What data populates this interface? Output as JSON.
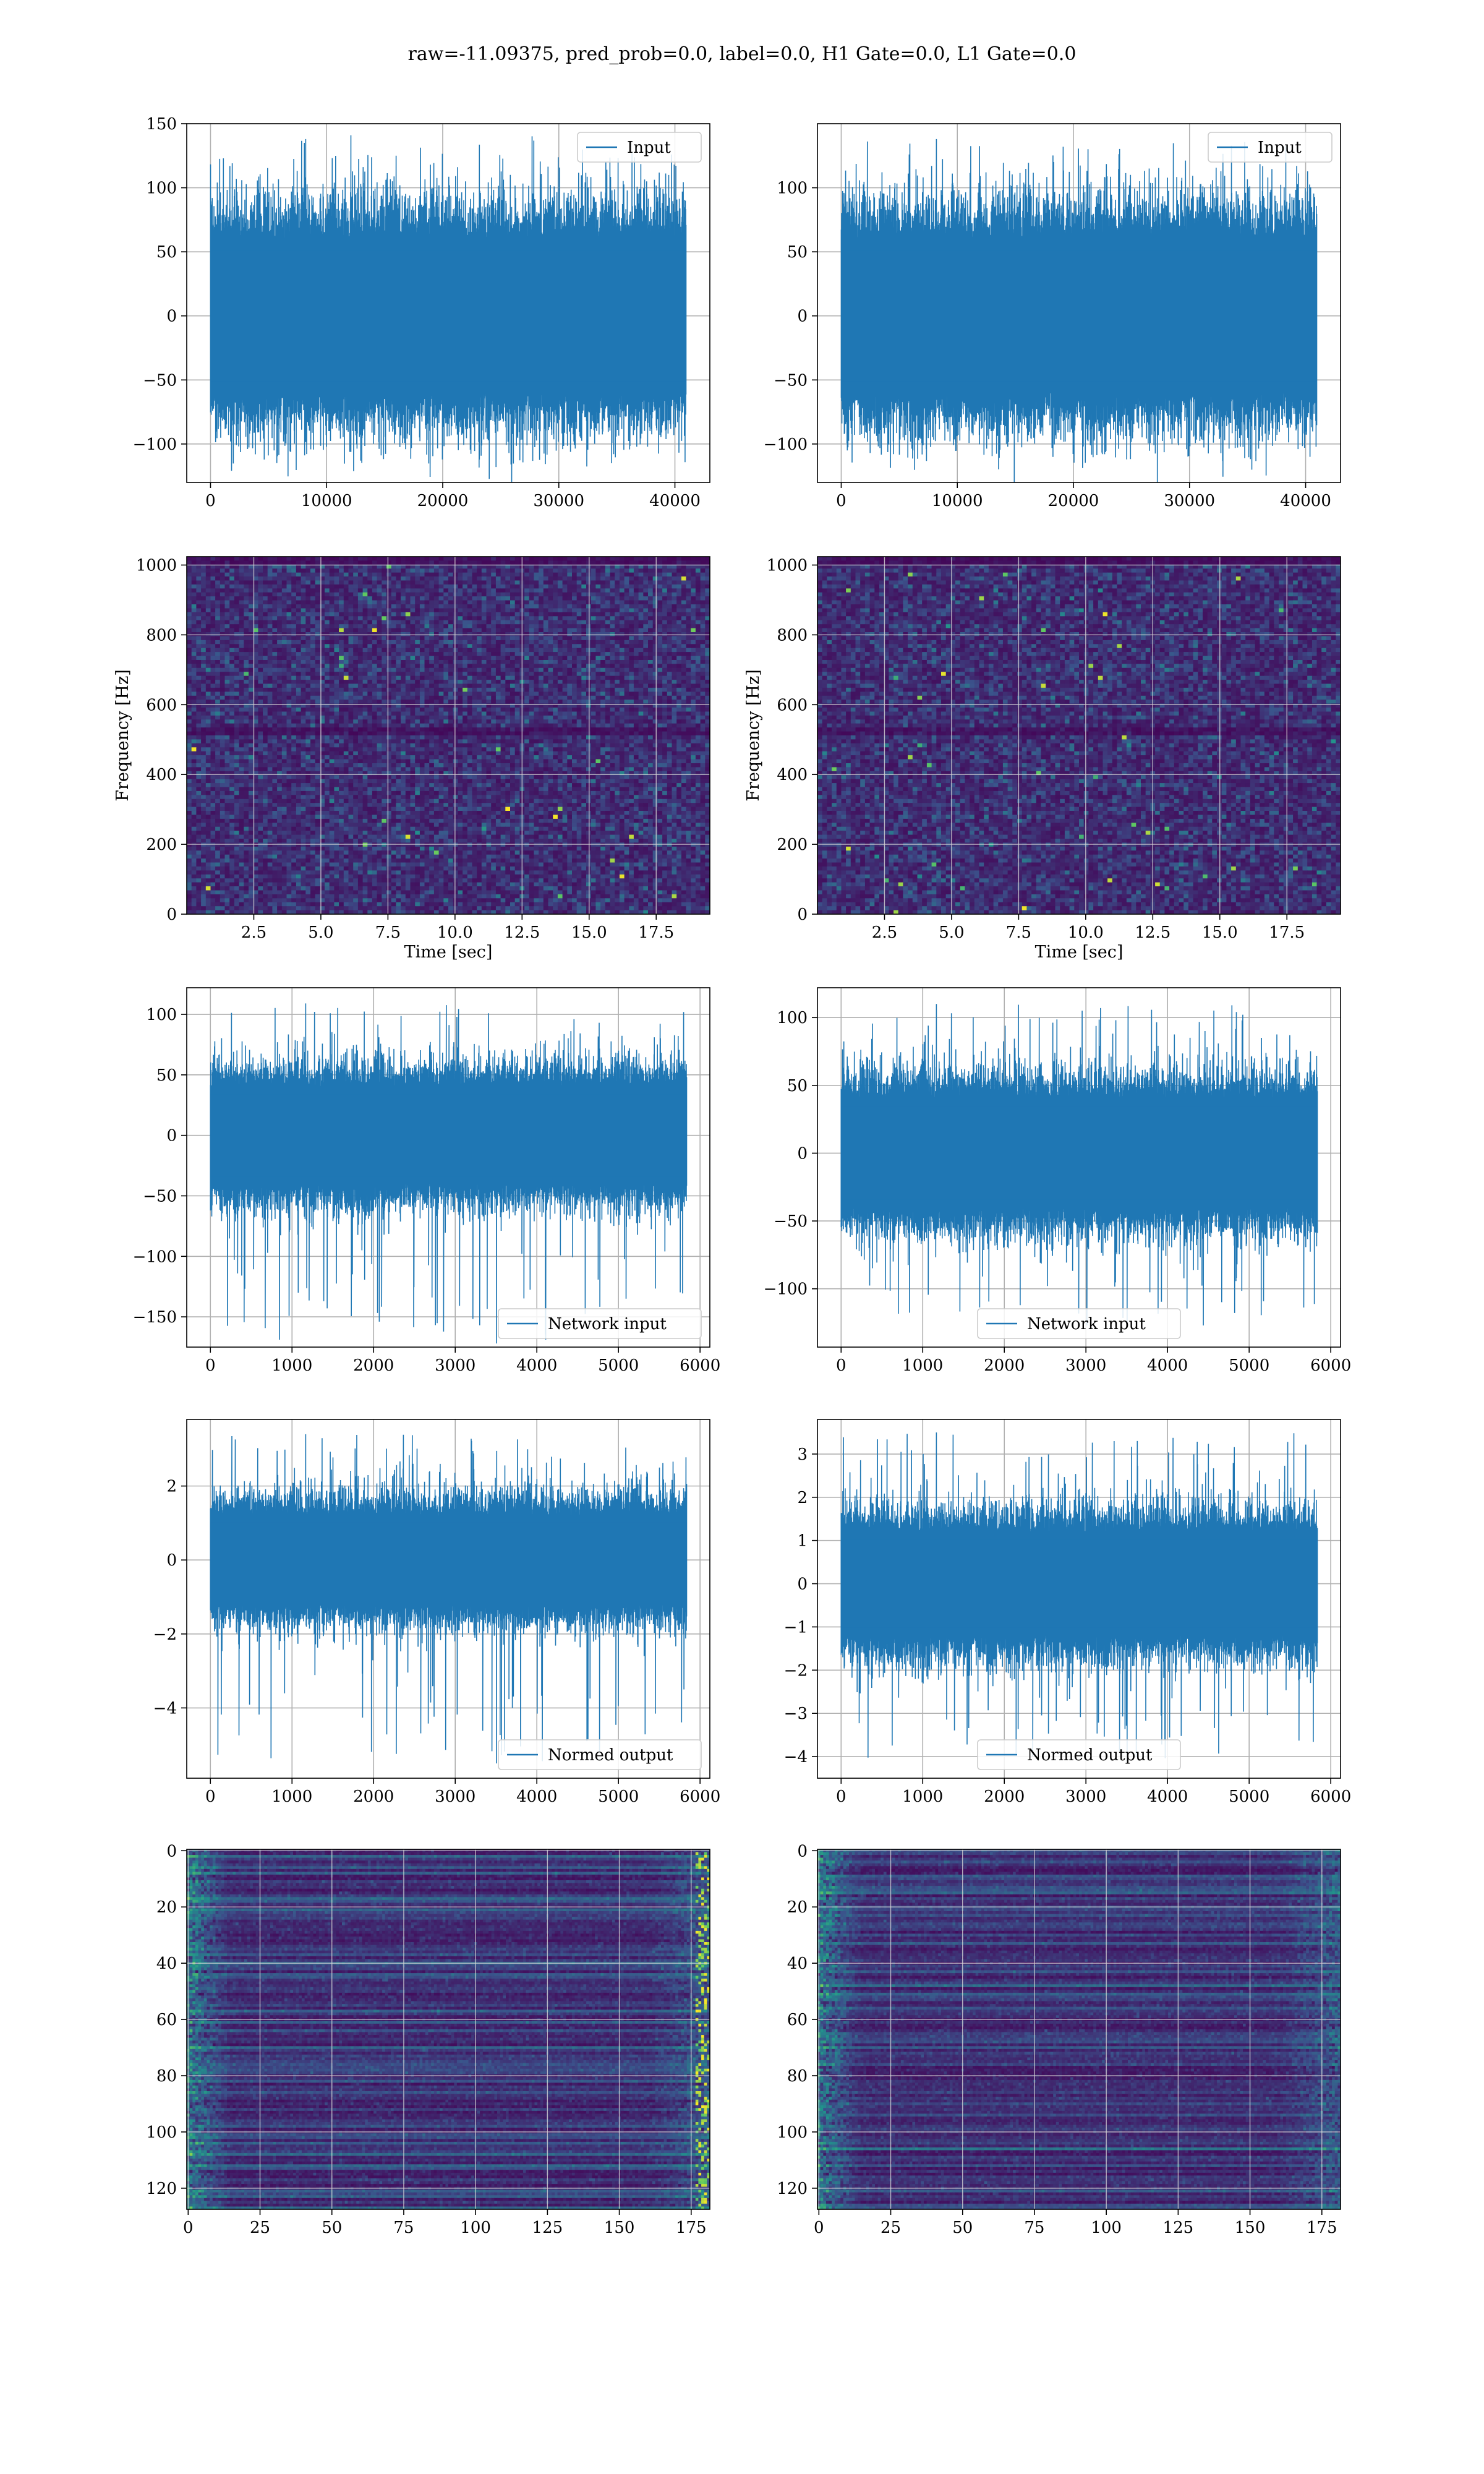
{
  "figure": {
    "title": "raw=-11.09375, pred_prob=0.0, label=0.0, H1 Gate=0.0, L1 Gate=0.0"
  },
  "colors": {
    "series": "#1f77b4",
    "grid": "#b0b0b0",
    "viridis_low": "#440154",
    "viridis_mid": "#3b528b",
    "viridis_teal": "#21918c",
    "viridis_green": "#5ec962",
    "viridis_high": "#fde725"
  },
  "chart_data": [
    {
      "type": "line",
      "row": 1,
      "col": 1,
      "title": "",
      "xlabel": "",
      "ylabel": "",
      "legend": [
        "Input"
      ],
      "legend_loc": "upper right",
      "xlim": [
        -2048,
        43008
      ],
      "ylim": [
        -130,
        150
      ],
      "xticks": [
        0,
        10000,
        20000,
        30000,
        40000
      ],
      "yticks": [
        -100,
        -50,
        0,
        50,
        100,
        150
      ],
      "grid": true,
      "series": [
        {
          "name": "Input",
          "n": 40960,
          "dense_band": [
            -60,
            60
          ],
          "peak_max": 138,
          "peak_min": -118
        }
      ]
    },
    {
      "type": "line",
      "row": 1,
      "col": 2,
      "title": "",
      "xlabel": "",
      "ylabel": "",
      "legend": [
        "Input"
      ],
      "legend_loc": "upper right",
      "xlim": [
        -2048,
        43008
      ],
      "ylim": [
        -130,
        150
      ],
      "xticks": [
        0,
        10000,
        20000,
        30000,
        40000
      ],
      "yticks": [
        -100,
        -50,
        0,
        50,
        100
      ],
      "grid": true,
      "series": [
        {
          "name": "Input",
          "n": 40960,
          "dense_band": [
            -60,
            60
          ],
          "peak_max": 138,
          "peak_min": -112
        }
      ]
    },
    {
      "type": "heatmap",
      "row": 2,
      "col": 1,
      "title": "",
      "xlabel": "Time [sec]",
      "ylabel": "Frequency [Hz]",
      "xlim": [
        0,
        19.5
      ],
      "ylim": [
        0,
        1024
      ],
      "xticks": [
        2.5,
        5.0,
        7.5,
        10.0,
        12.5,
        15.0,
        17.5
      ],
      "xticklabels": [
        "2.5",
        "5.0",
        "7.5",
        "10.0",
        "12.5",
        "15.0",
        "17.5"
      ],
      "yticks": [
        0,
        200,
        400,
        600,
        800,
        1000
      ],
      "grid": true,
      "colormap": "viridis"
    },
    {
      "type": "heatmap",
      "row": 2,
      "col": 2,
      "title": "",
      "xlabel": "Time [sec]",
      "ylabel": "Frequency [Hz]",
      "xlim": [
        0,
        19.5
      ],
      "ylim": [
        0,
        1024
      ],
      "xticks": [
        2.5,
        5.0,
        7.5,
        10.0,
        12.5,
        15.0,
        17.5
      ],
      "xticklabels": [
        "2.5",
        "5.0",
        "7.5",
        "10.0",
        "12.5",
        "15.0",
        "17.5"
      ],
      "yticks": [
        0,
        200,
        400,
        600,
        800,
        1000
      ],
      "grid": true,
      "colormap": "viridis"
    },
    {
      "type": "line",
      "row": 3,
      "col": 1,
      "title": "",
      "xlabel": "",
      "ylabel": "",
      "legend": [
        "Network input"
      ],
      "legend_loc": "lower right",
      "xlim": [
        -290,
        6120
      ],
      "ylim": [
        -175,
        122
      ],
      "xticks": [
        0,
        1000,
        2000,
        3000,
        4000,
        5000,
        6000
      ],
      "yticks": [
        -150,
        -100,
        -50,
        0,
        50,
        100
      ],
      "grid": true,
      "series": [
        {
          "name": "Network input",
          "n": 5836,
          "dense_band": [
            -40,
            40
          ],
          "peak_max": 109,
          "peak_min": -172
        }
      ]
    },
    {
      "type": "line",
      "row": 3,
      "col": 2,
      "title": "",
      "xlabel": "",
      "ylabel": "",
      "legend": [
        "Network input"
      ],
      "legend_loc": "lower center",
      "xlim": [
        -290,
        6120
      ],
      "ylim": [
        -143,
        122
      ],
      "xticks": [
        0,
        1000,
        2000,
        3000,
        4000,
        5000,
        6000
      ],
      "yticks": [
        -100,
        -50,
        0,
        50,
        100
      ],
      "grid": true,
      "series": [
        {
          "name": "Network input",
          "n": 5836,
          "dense_band": [
            -40,
            40
          ],
          "peak_max": 110,
          "peak_min": -128
        }
      ]
    },
    {
      "type": "line",
      "row": 4,
      "col": 1,
      "title": "",
      "xlabel": "",
      "ylabel": "",
      "legend": [
        "Normed output"
      ],
      "legend_loc": "lower right",
      "xlim": [
        -290,
        6120
      ],
      "ylim": [
        -5.9,
        3.8
      ],
      "xticks": [
        0,
        1000,
        2000,
        3000,
        4000,
        5000,
        6000
      ],
      "yticks": [
        -4,
        -2,
        0,
        2
      ],
      "grid": true,
      "series": [
        {
          "name": "Normed output",
          "n": 5836,
          "dense_band": [
            -1.2,
            1.2
          ],
          "peak_max": 3.4,
          "peak_min": -5.5
        }
      ]
    },
    {
      "type": "line",
      "row": 4,
      "col": 2,
      "title": "",
      "xlabel": "",
      "ylabel": "",
      "legend": [
        "Normed output"
      ],
      "legend_loc": "lower center",
      "xlim": [
        -290,
        6120
      ],
      "ylim": [
        -4.5,
        3.8
      ],
      "xticks": [
        0,
        1000,
        2000,
        3000,
        4000,
        5000,
        6000
      ],
      "yticks": [
        -4,
        -3,
        -2,
        -1,
        0,
        1,
        2,
        3
      ],
      "grid": true,
      "series": [
        {
          "name": "Normed output",
          "n": 5836,
          "dense_band": [
            -1.2,
            1.2
          ],
          "peak_max": 3.5,
          "peak_min": -4.1
        }
      ]
    },
    {
      "type": "heatmap",
      "row": 5,
      "col": 1,
      "title": "",
      "xlabel": "",
      "ylabel": "",
      "xlim": [
        -0.5,
        181.5
      ],
      "ylim": [
        127.5,
        -0.5
      ],
      "xticks": [
        0,
        25,
        50,
        75,
        100,
        125,
        150,
        175
      ],
      "yticks": [
        0,
        20,
        40,
        60,
        80,
        100,
        120
      ],
      "grid": true,
      "colormap": "viridis",
      "shape": [
        128,
        182
      ]
    },
    {
      "type": "heatmap",
      "row": 5,
      "col": 2,
      "title": "",
      "xlabel": "",
      "ylabel": "",
      "xlim": [
        -0.5,
        181.5
      ],
      "ylim": [
        127.5,
        -0.5
      ],
      "xticks": [
        0,
        25,
        50,
        75,
        100,
        125,
        150,
        175
      ],
      "yticks": [
        0,
        20,
        40,
        60,
        80,
        100,
        120
      ],
      "grid": true,
      "colormap": "viridis",
      "shape": [
        128,
        182
      ]
    }
  ]
}
